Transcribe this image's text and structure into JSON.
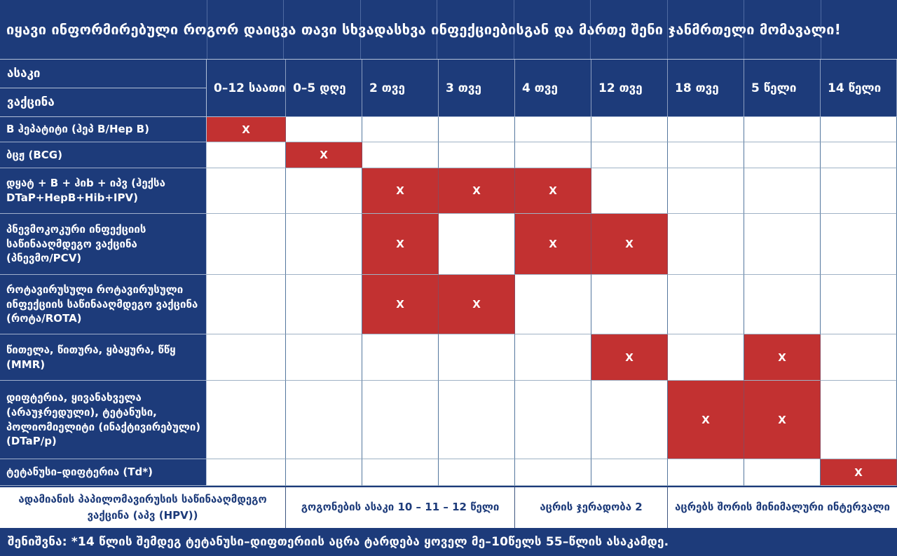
{
  "title": "იყავი ინფორმირებული როგორ დაიცვა თავი სხვადასხვა ინფექციებისგან და მართე შენი ჯანმრთელი მომავალი!",
  "colors": {
    "navy": "#1d3b7a",
    "red": "#c23131",
    "white": "#ffffff",
    "grid_vertical": "#54779e",
    "grid_horizontal": "#9fb2c5"
  },
  "mark_symbol": "X",
  "header": {
    "age_label": "ასაკი",
    "vaccine_label": "ვაქცინა",
    "columns": [
      "0–12 საათი",
      "0–5 დღე",
      "2 თვე",
      "3 თვე",
      "4 თვე",
      "12 თვე",
      "18 თვე",
      "5 წელი",
      "14 წელი"
    ]
  },
  "rows": [
    {
      "label": "B ჰეპატიტი (ჰეპ B/Hep B)",
      "marks": [
        0
      ]
    },
    {
      "label": "ბცჟ (BCG)",
      "marks": [
        1
      ]
    },
    {
      "label": "დყატ + B + ჰიb + იპვ (ჰექსა DTaP+HepB+Hib+IPV)",
      "marks": [
        2,
        3,
        4
      ]
    },
    {
      "label": "პნევმოკოკური ინფექციის საწინააღმდეგო ვაქცინა (პნევმო/PCV)",
      "marks": [
        2,
        4,
        5
      ]
    },
    {
      "label": "როტავირუსული როტავირუსული ინფექციის საწინააღმდეგო ვაქცინა (როტა/ROTA)",
      "marks": [
        2,
        3
      ]
    },
    {
      "label": "წითელა, წითურა, ყბაყურა, წწყ (MMR)",
      "marks": [
        5,
        7
      ]
    },
    {
      "label": "დიფტერია, ყივანახველა (არაუჯრედული), ტეტანუსი, პოლიომიელიტი (ინაქტივირებული) (DTaP/p)",
      "marks": [
        6,
        7
      ]
    },
    {
      "label": "ტეტანუსი–დიფტერია (Td*)",
      "marks": [
        8
      ]
    }
  ],
  "hpv_row": {
    "label": "ადამიანის პაპილომავირუსის საწინააღმდეგო ვაქცინა (აპვ (HPV))",
    "cells": [
      "გოგონების ასაკი 10 – 11 – 12 წელი",
      "აცრის ჯერადობა 2",
      "აცრებს შორის მინიმალური ინტერვალი"
    ]
  },
  "note": "შენიშვნა: *14 წლის შემდეგ ტეტანუსი–დიფთერიის აცრა ტარდება ყოველ მე–10წელს 55–წლის ასაკამდე."
}
